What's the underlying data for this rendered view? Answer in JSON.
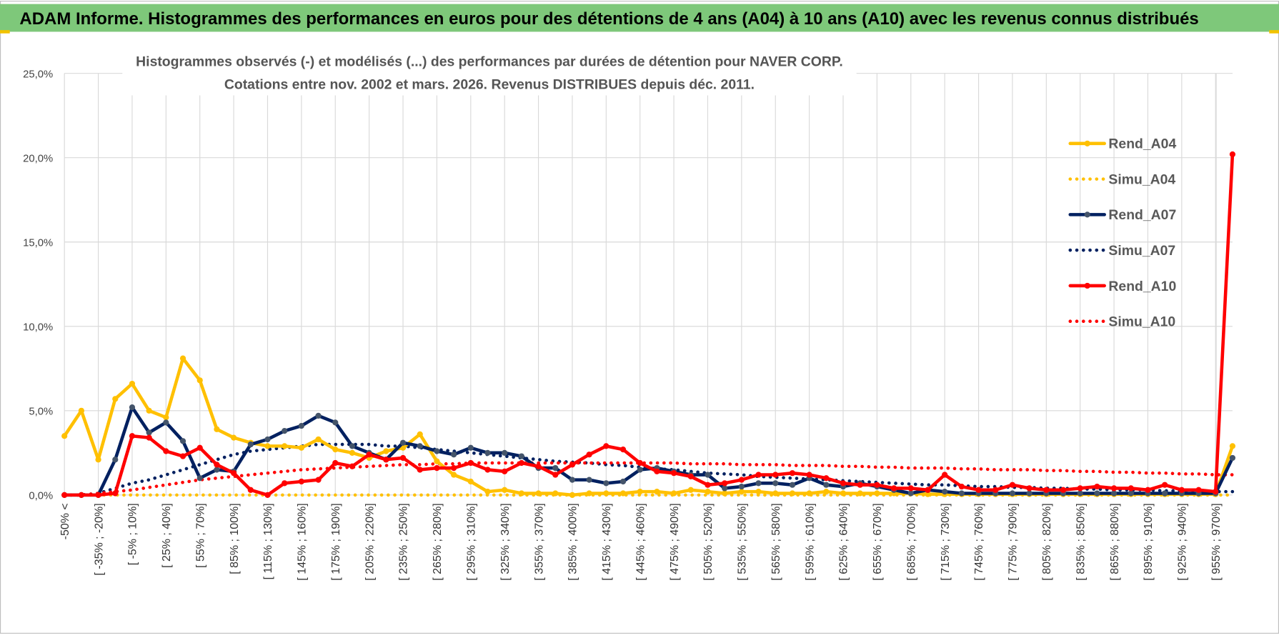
{
  "header": {
    "title": "ADAM Informe. Histogrammes des performances en euros pour des détentions de 4 ans (A04) à 10 ans (A10) avec les revenus connus distribués"
  },
  "chart_data": {
    "type": "line",
    "title": "Histogrammes observés (-) et modélisés (...) des performances par durées de détention pour NAVER CORP.",
    "subtitle": "Cotations entre nov. 2002 et mars. 2026. Revenus DISTRIBUES depuis déc. 2011.",
    "categories": [
      "-50% <",
      null,
      "[ -35% ; -20%]",
      null,
      "[ -5% ; 10%]",
      null,
      "[ 25% ; 40%]",
      null,
      "[ 55% ; 70%]",
      null,
      "[ 85% ; 100%]",
      null,
      "[ 115% ; 130%]",
      null,
      "[ 145% ; 160%]",
      null,
      "[ 175% ; 190%]",
      null,
      "[ 205% ; 220%]",
      null,
      "[ 235% ; 250%]",
      null,
      "[ 265% ; 280%]",
      null,
      "[ 295% ; 310%]",
      null,
      "[ 325% ; 340%]",
      null,
      "[ 355% ; 370%]",
      null,
      "[ 385% ; 400%]",
      null,
      "[ 415% ; 430%]",
      null,
      "[ 445% ; 460%]",
      null,
      "[ 475% ; 490%]",
      null,
      "[ 505% ; 520%]",
      null,
      "[ 535% ; 550%]",
      null,
      "[ 565% ; 580%]",
      null,
      "[ 595% ; 610%]",
      null,
      "[ 625% ; 640%]",
      null,
      "[ 655% ; 670%]",
      null,
      "[ 685% ; 700%]",
      null,
      "[ 715% ; 730%]",
      null,
      "[ 745% ; 760%]",
      null,
      "[ 775% ; 790%]",
      null,
      "[ 805% ; 820%]",
      null,
      "[ 835% ; 850%]",
      null,
      "[ 865% ; 880%]",
      null,
      "[ 895% ; 910%]",
      null,
      "[ 925% ; 940%]",
      null,
      "[ 955% ; 970%]",
      null
    ],
    "ylim": [
      0,
      25
    ],
    "yticks": [
      {
        "value": 0,
        "label": "0,0%"
      },
      {
        "value": 5,
        "label": "5,0%"
      },
      {
        "value": 10,
        "label": "10,0%"
      },
      {
        "value": 15,
        "label": "15,0%"
      },
      {
        "value": 20,
        "label": "20,0%"
      },
      {
        "value": 25,
        "label": "25,0%"
      }
    ],
    "grid": true,
    "legend": "right",
    "series": [
      {
        "name": "Rend_A04",
        "color": "#ffc000",
        "line_style": "solid",
        "markers": true,
        "values": [
          3.5,
          5.0,
          2.1,
          5.7,
          6.6,
          5.0,
          4.6,
          8.1,
          6.8,
          3.9,
          3.4,
          3.1,
          2.9,
          2.9,
          2.8,
          3.3,
          2.7,
          2.5,
          2.2,
          2.6,
          2.8,
          3.6,
          2.0,
          1.2,
          0.8,
          0.2,
          0.3,
          0.1,
          0.1,
          0.1,
          0.0,
          0.1,
          0.1,
          0.1,
          0.2,
          0.2,
          0.1,
          0.3,
          0.2,
          0.1,
          0.2,
          0.2,
          0.1,
          0.1,
          0.1,
          0.2,
          0.1,
          0.1,
          0.1,
          0.1,
          0.1,
          0.05,
          0.05,
          0.05,
          0.05,
          0.05,
          0.05,
          0.05,
          0.05,
          0.05,
          0.05,
          0.05,
          0.05,
          0.05,
          0.05,
          0.05,
          0.05,
          0.05,
          0.05,
          2.9
        ]
      },
      {
        "name": "Simu_A04",
        "color": "#ffc000",
        "line_style": "dotted",
        "markers": false,
        "values": [
          0,
          0,
          0,
          0,
          0,
          0,
          0,
          0,
          0,
          0,
          0,
          0,
          0,
          0,
          0,
          0,
          0,
          0,
          0,
          0,
          0,
          0,
          0,
          0,
          0,
          0,
          0,
          0,
          0,
          0,
          0,
          0,
          0,
          0,
          0,
          0,
          0,
          0,
          0,
          0,
          0,
          0,
          0,
          0,
          0,
          0,
          0,
          0,
          0,
          0,
          0,
          0,
          0,
          0,
          0,
          0,
          0,
          0,
          0,
          0,
          0,
          0,
          0,
          0,
          0,
          0,
          0,
          0,
          0,
          0
        ]
      },
      {
        "name": "Rend_A07",
        "color": "#002060",
        "line_style": "solid",
        "markers": true,
        "marker_color": "#44546a",
        "values": [
          0,
          0,
          0,
          2.1,
          5.2,
          3.7,
          4.3,
          3.2,
          1.0,
          1.5,
          1.4,
          3.0,
          3.3,
          3.8,
          4.1,
          4.7,
          4.3,
          2.9,
          2.5,
          2.1,
          3.1,
          2.9,
          2.6,
          2.4,
          2.8,
          2.5,
          2.5,
          2.3,
          1.6,
          1.6,
          0.9,
          0.9,
          0.7,
          0.8,
          1.5,
          1.6,
          1.4,
          1.2,
          1.2,
          0.4,
          0.5,
          0.7,
          0.7,
          0.6,
          1.0,
          0.6,
          0.5,
          0.7,
          0.5,
          0.3,
          0.1,
          0.3,
          0.2,
          0.1,
          0.1,
          0.1,
          0.1,
          0.1,
          0.1,
          0.1,
          0.1,
          0.1,
          0.1,
          0.1,
          0.1,
          0.1,
          0.1,
          0.1,
          0.1,
          2.2
        ]
      },
      {
        "name": "Simu_A07",
        "color": "#002060",
        "line_style": "dotted",
        "markers": false,
        "values": [
          0,
          0,
          0.1,
          0.4,
          0.7,
          0.9,
          1.2,
          1.5,
          1.8,
          2.1,
          2.4,
          2.6,
          2.7,
          2.8,
          2.9,
          3.0,
          3.0,
          3.0,
          3.0,
          2.9,
          2.9,
          2.8,
          2.7,
          2.6,
          2.5,
          2.4,
          2.3,
          2.2,
          2.1,
          2.0,
          1.95,
          1.9,
          1.8,
          1.75,
          1.65,
          1.55,
          1.5,
          1.4,
          1.3,
          1.25,
          1.2,
          1.1,
          1.05,
          1.0,
          0.95,
          0.9,
          0.85,
          0.8,
          0.75,
          0.7,
          0.65,
          0.6,
          0.6,
          0.55,
          0.5,
          0.5,
          0.45,
          0.45,
          0.4,
          0.4,
          0.35,
          0.35,
          0.3,
          0.3,
          0.3,
          0.25,
          0.25,
          0.25,
          0.2,
          0.2
        ]
      },
      {
        "name": "Rend_A10",
        "color": "#ff0000",
        "line_style": "solid",
        "markers": true,
        "values": [
          0,
          0,
          0,
          0.1,
          3.5,
          3.4,
          2.6,
          2.3,
          2.8,
          1.8,
          1.3,
          0.3,
          0.0,
          0.7,
          0.8,
          0.9,
          1.9,
          1.7,
          2.4,
          2.1,
          2.2,
          1.5,
          1.6,
          1.6,
          1.9,
          1.5,
          1.4,
          1.9,
          1.7,
          1.2,
          1.8,
          2.4,
          2.9,
          2.7,
          1.9,
          1.4,
          1.3,
          1.1,
          0.6,
          0.7,
          0.9,
          1.2,
          1.2,
          1.3,
          1.2,
          1.0,
          0.7,
          0.6,
          0.6,
          0.4,
          0.4,
          0.3,
          1.2,
          0.5,
          0.3,
          0.3,
          0.6,
          0.4,
          0.3,
          0.3,
          0.4,
          0.5,
          0.4,
          0.4,
          0.3,
          0.6,
          0.3,
          0.3,
          0.2,
          20.2
        ]
      },
      {
        "name": "Simu_A10",
        "color": "#ff0000",
        "line_style": "dotted",
        "markers": false,
        "values": [
          0,
          0,
          0.1,
          0.2,
          0.3,
          0.45,
          0.6,
          0.75,
          0.9,
          1.0,
          1.1,
          1.2,
          1.3,
          1.4,
          1.5,
          1.55,
          1.6,
          1.65,
          1.7,
          1.75,
          1.8,
          1.8,
          1.85,
          1.85,
          1.9,
          1.9,
          1.9,
          1.9,
          1.9,
          1.9,
          1.9,
          1.9,
          1.9,
          1.9,
          1.9,
          1.9,
          1.9,
          1.85,
          1.85,
          1.85,
          1.8,
          1.8,
          1.8,
          1.75,
          1.75,
          1.75,
          1.7,
          1.7,
          1.65,
          1.65,
          1.6,
          1.6,
          1.6,
          1.55,
          1.55,
          1.5,
          1.5,
          1.5,
          1.45,
          1.45,
          1.4,
          1.4,
          1.35,
          1.35,
          1.3,
          1.3,
          1.25,
          1.25,
          1.2,
          1.2
        ]
      }
    ]
  }
}
